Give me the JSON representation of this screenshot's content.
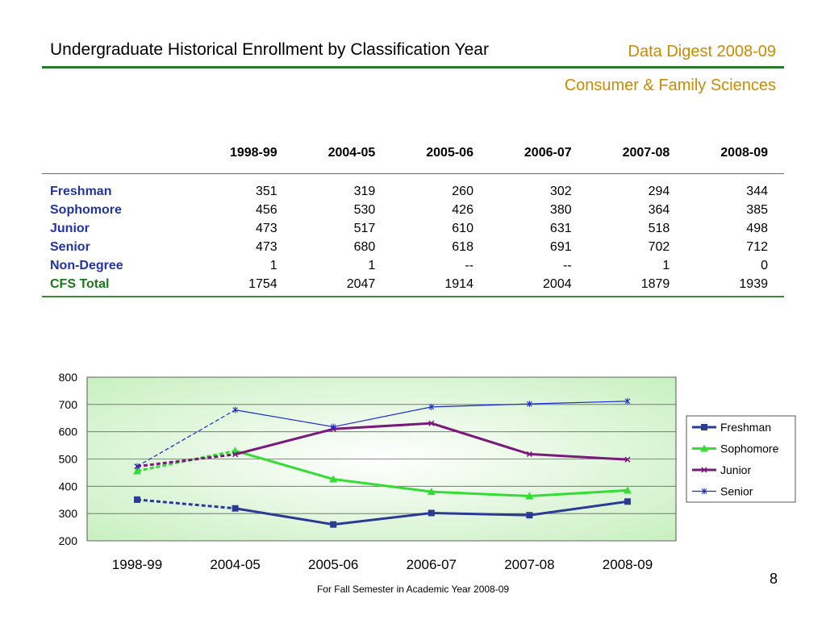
{
  "header": {
    "title": "Undergraduate Historical Enrollment by Classification Year",
    "digest": "Data Digest 2008-09",
    "department": "Consumer & Family Sciences"
  },
  "table": {
    "columns": [
      "1998-99",
      "2004-05",
      "2005-06",
      "2006-07",
      "2007-08",
      "2008-09"
    ],
    "rows": [
      {
        "label": "Freshman",
        "values": [
          "351",
          "319",
          "260",
          "302",
          "294",
          "344"
        ]
      },
      {
        "label": "Sophomore",
        "values": [
          "456",
          "530",
          "426",
          "380",
          "364",
          "385"
        ]
      },
      {
        "label": "Junior",
        "values": [
          "473",
          "517",
          "610",
          "631",
          "518",
          "498"
        ]
      },
      {
        "label": "Senior",
        "values": [
          "473",
          "680",
          "618",
          "691",
          "702",
          "712"
        ]
      },
      {
        "label": "Non-Degree",
        "values": [
          "1",
          "1",
          "--",
          "--",
          "1",
          "0"
        ]
      },
      {
        "label": "CFS Total",
        "values": [
          "1754",
          "2047",
          "1914",
          "2004",
          "1879",
          "1939"
        ]
      }
    ]
  },
  "chart_data": {
    "type": "line",
    "categories": [
      "1998-99",
      "2004-05",
      "2005-06",
      "2006-07",
      "2007-08",
      "2008-09"
    ],
    "ylim": [
      200,
      800
    ],
    "yticks": [
      200,
      300,
      400,
      500,
      600,
      700,
      800
    ],
    "grid": true,
    "legend": "right",
    "series": [
      {
        "name": "Freshman",
        "values": [
          351,
          319,
          260,
          302,
          294,
          344
        ],
        "color": "#2b3a94",
        "marker": "square"
      },
      {
        "name": "Sophomore",
        "values": [
          456,
          530,
          426,
          380,
          364,
          385
        ],
        "color": "#33dd33",
        "marker": "triangle"
      },
      {
        "name": "Junior",
        "values": [
          473,
          517,
          610,
          631,
          518,
          498
        ],
        "color": "#7a1a7a",
        "marker": "x"
      },
      {
        "name": "Senior",
        "values": [
          473,
          680,
          618,
          691,
          702,
          712
        ],
        "color": "#1a2ad0",
        "marker": "star"
      }
    ]
  },
  "footer": {
    "page_number": "8",
    "note": "For Fall Semester in Academic Year 2008-09"
  }
}
